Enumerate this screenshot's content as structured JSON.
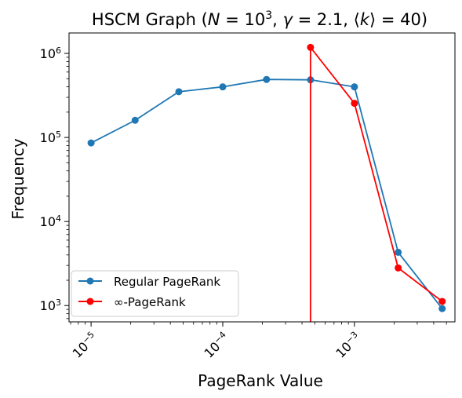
{
  "chart_data": {
    "type": "line",
    "title": "HSCM Graph (N = 10³, γ = 2.1, ⟨k⟩ = 40)",
    "title_parts": {
      "prefix": "HSCM Graph (",
      "n_var": "N",
      "n_eq": " = 10",
      "n_exp": "3",
      "sep1": ", ",
      "gamma_var": "γ",
      "gamma_eq": " = 2.1",
      "sep2": ", ",
      "k_open": "⟨",
      "k_var": "k",
      "k_close": "⟩",
      "k_eq": " = 40)"
    },
    "xlabel": "PageRank Value",
    "ylabel": "Frequency",
    "xscale": "log",
    "yscale": "log",
    "xlim": [
      6.8e-06,
      0.0058
    ],
    "ylim": [
      640,
      1750000
    ],
    "xticks": [
      {
        "value": 1e-05,
        "base": "10",
        "exp": "−5"
      },
      {
        "value": 0.0001,
        "base": "10",
        "exp": "−4"
      },
      {
        "value": 0.001,
        "base": "10",
        "exp": "−3"
      }
    ],
    "yticks": [
      {
        "value": 1000,
        "base": "10",
        "exp": "3"
      },
      {
        "value": 10000,
        "base": "10",
        "exp": "4"
      },
      {
        "value": 100000,
        "base": "10",
        "exp": "5"
      },
      {
        "value": 1000000,
        "base": "10",
        "exp": "6"
      }
    ],
    "grid": false,
    "legend_position": "lower-left",
    "series": [
      {
        "name": "Regular PageRank",
        "color": "#1f77b4",
        "x": [
          1e-05,
          2.16e-05,
          4.64e-05,
          0.0001,
          0.000215,
          0.000464,
          0.001,
          0.00215,
          0.00464
        ],
        "y": [
          86000,
          160000,
          350000,
          400000,
          490000,
          485000,
          400000,
          4300,
          920
        ]
      },
      {
        "name": "∞-PageRank",
        "color": "#ff0000",
        "x": [
          0.000464,
          0.000464,
          0.001,
          0.00215,
          0.00464
        ],
        "y": [
          0,
          1180000,
          255000,
          2800,
          1120
        ]
      }
    ]
  }
}
